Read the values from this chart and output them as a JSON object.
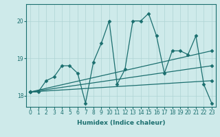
{
  "xlabel": "Humidex (Indice chaleur)",
  "ylabel": "",
  "bg_color": "#ceeaea",
  "line_color": "#1a6e6e",
  "xlim": [
    -0.5,
    23.5
  ],
  "ylim": [
    17.7,
    20.45
  ],
  "yticks": [
    18,
    19,
    20
  ],
  "xticks": [
    0,
    1,
    2,
    3,
    4,
    5,
    6,
    7,
    8,
    9,
    10,
    11,
    12,
    13,
    14,
    15,
    16,
    17,
    18,
    19,
    20,
    21,
    22,
    23
  ],
  "series": [
    {
      "x": [
        0,
        1,
        2,
        3,
        4,
        5,
        6,
        7,
        8,
        9,
        10,
        11,
        12,
        13,
        14,
        15,
        16,
        17,
        18,
        19,
        20,
        21,
        22,
        23
      ],
      "y": [
        18.1,
        18.1,
        18.4,
        18.5,
        18.8,
        18.8,
        18.6,
        17.8,
        18.9,
        19.4,
        20.0,
        18.3,
        18.7,
        20.0,
        20.0,
        20.2,
        19.6,
        18.6,
        19.2,
        19.2,
        19.1,
        19.6,
        18.3,
        17.8
      ]
    },
    {
      "x": [
        0,
        23
      ],
      "y": [
        18.1,
        19.2
      ]
    },
    {
      "x": [
        0,
        23
      ],
      "y": [
        18.1,
        18.8
      ]
    },
    {
      "x": [
        0,
        23
      ],
      "y": [
        18.1,
        18.4
      ]
    }
  ],
  "grid_color": "#aed4d4",
  "marker": "D",
  "markersize": 2.5,
  "linewidth": 0.9,
  "label_fontsize": 6.5,
  "tick_fontsize": 5.5
}
